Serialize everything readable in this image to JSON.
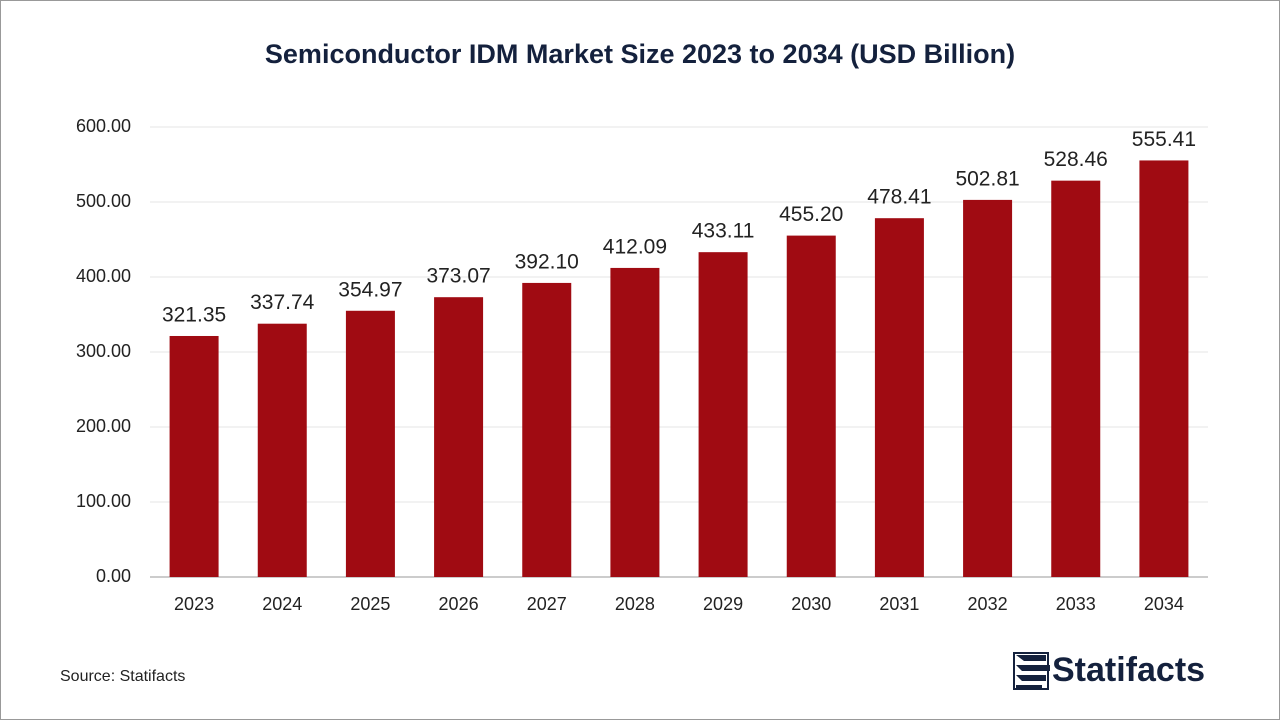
{
  "chart_data": {
    "type": "bar",
    "title": "Semiconductor IDM Market Size 2023 to 2034 (USD Billion)",
    "categories": [
      "2023",
      "2024",
      "2025",
      "2026",
      "2027",
      "2028",
      "2029",
      "2030",
      "2031",
      "2032",
      "2033",
      "2034"
    ],
    "values": [
      321.35,
      337.74,
      354.97,
      373.07,
      392.1,
      412.09,
      433.11,
      455.2,
      478.41,
      502.81,
      528.46,
      555.41
    ],
    "value_labels": [
      "321.35",
      "337.74",
      "354.97",
      "373.07",
      "392.10",
      "412.09",
      "433.11",
      "455.20",
      "478.41",
      "502.81",
      "528.46",
      "555.41"
    ],
    "color": "#a00b12",
    "ylim": [
      0,
      600
    ],
    "yticks": [
      {
        "value": 0,
        "label": "0.00"
      },
      {
        "value": 100,
        "label": "100.00"
      },
      {
        "value": 200,
        "label": "200.00"
      },
      {
        "value": 300,
        "label": "300.00"
      },
      {
        "value": 400,
        "label": "400.00"
      },
      {
        "value": 500,
        "label": "500.00"
      },
      {
        "value": 600,
        "label": "600.00"
      }
    ],
    "grid": true
  },
  "footer": {
    "source": "Source: Statifacts",
    "brand": "Statifacts"
  }
}
